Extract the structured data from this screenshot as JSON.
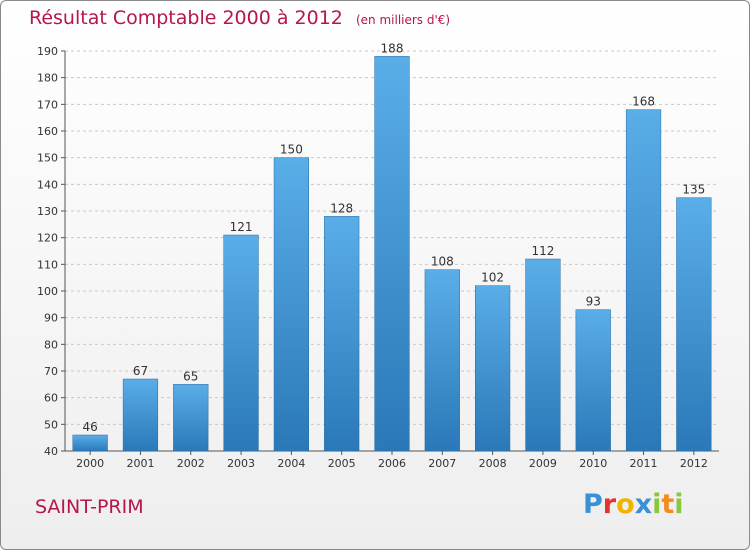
{
  "title": "Résultat Comptable 2000 à 2012",
  "subtitle": "(en milliers d'€)",
  "city": "SAINT-PRIM",
  "logo": {
    "text": "Proxiti",
    "letters": [
      {
        "ch": "P",
        "color": "#3a8fd6"
      },
      {
        "ch": "r",
        "color": "#e3342f"
      },
      {
        "ch": "o",
        "color": "#f0b400"
      },
      {
        "ch": "x",
        "color": "#3a8fd6"
      },
      {
        "ch": "i",
        "color": "#8cc63f"
      },
      {
        "ch": "t",
        "color": "#f28c1e"
      },
      {
        "ch": "i",
        "color": "#8cc63f"
      }
    ]
  },
  "colors": {
    "bar_top": "#5aaee8",
    "bar_bottom": "#2a78b8",
    "accent": "#b5174a",
    "axis": "#555555",
    "grid": "#c8c8c8",
    "text": "#333333"
  },
  "chart_data": {
    "type": "bar",
    "title": "Résultat Comptable 2000 à 2012",
    "subtitle": "(en milliers d'€)",
    "categories": [
      "2000",
      "2001",
      "2002",
      "2003",
      "2004",
      "2005",
      "2006",
      "2007",
      "2008",
      "2009",
      "2010",
      "2011",
      "2012"
    ],
    "values": [
      46,
      67,
      65,
      121,
      150,
      128,
      188,
      108,
      102,
      112,
      93,
      168,
      135
    ],
    "ylim": [
      40,
      190
    ],
    "yticks": [
      40,
      50,
      60,
      70,
      80,
      90,
      100,
      110,
      120,
      130,
      140,
      150,
      160,
      170,
      180,
      190
    ],
    "grid": true,
    "data_labels": true
  }
}
